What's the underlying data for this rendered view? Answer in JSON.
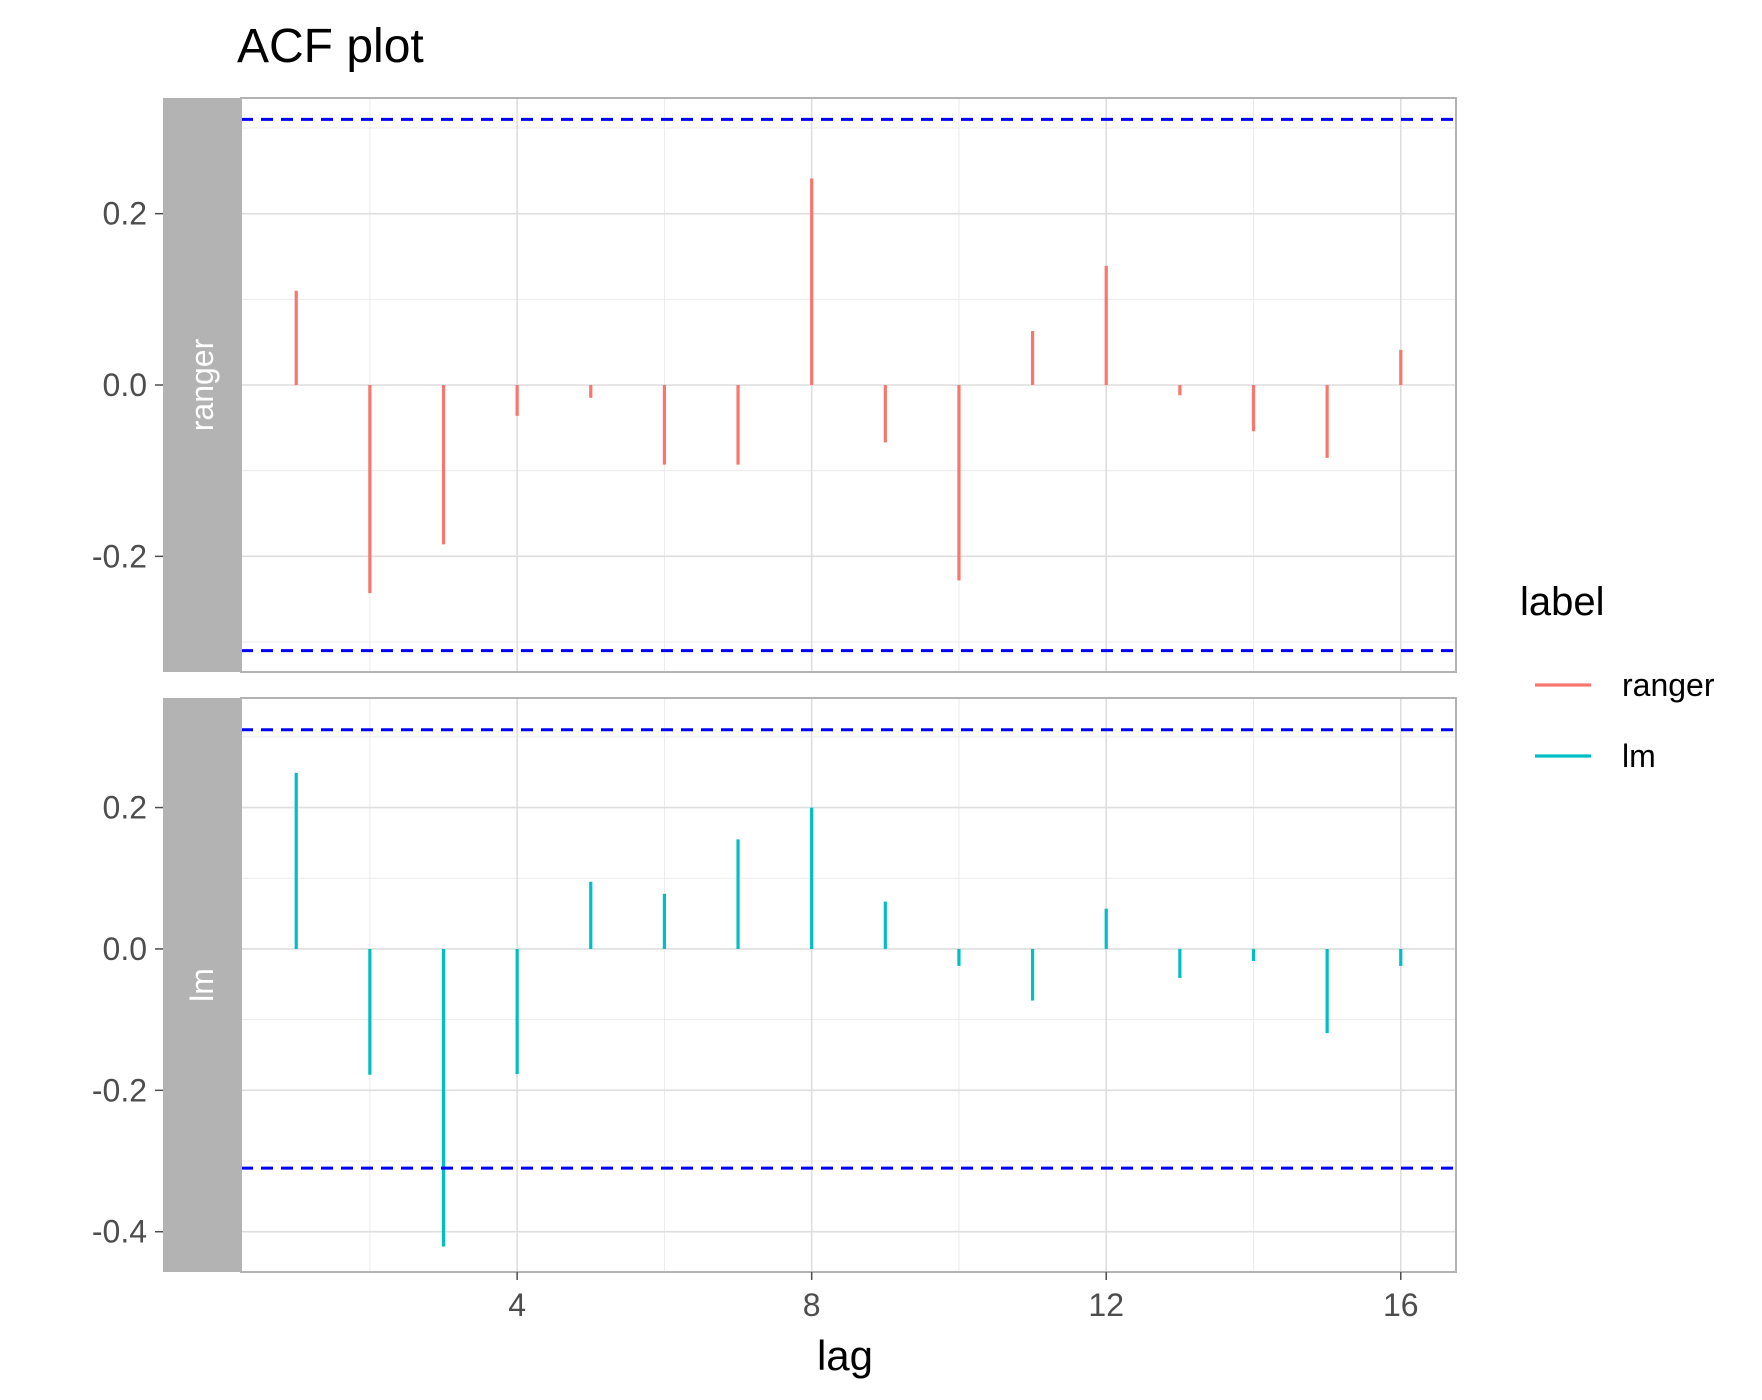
{
  "chart_data": {
    "type": "bar",
    "title": "ACF plot",
    "xlabel": "lag",
    "ylabel": "",
    "x_ticks": [
      4,
      8,
      12,
      16
    ],
    "x_tick_labels": [
      "4",
      "8",
      "12",
      "16"
    ],
    "xlim": [
      0.25,
      16.75
    ],
    "lags": [
      1,
      2,
      3,
      4,
      5,
      6,
      7,
      8,
      9,
      10,
      11,
      12,
      13,
      14,
      15,
      16
    ],
    "grid": true,
    "legend": {
      "title": "label",
      "position": "right",
      "entries": [
        {
          "name": "ranger",
          "color": "#F8766D"
        },
        {
          "name": "lm",
          "color": "#00BFC4"
        }
      ]
    },
    "confidence_color": "#0000FF",
    "panels": [
      {
        "strip_label": "ranger",
        "series": "ranger",
        "color": "#F8766D",
        "ylim": [
          -0.335,
          0.335
        ],
        "y_ticks": [
          -0.2,
          0.0,
          0.2
        ],
        "y_tick_labels": [
          "-0.2",
          "0.0",
          "0.2"
        ],
        "ci": 0.31,
        "values": [
          0.11,
          -0.243,
          -0.186,
          -0.036,
          -0.015,
          -0.093,
          -0.093,
          0.241,
          -0.067,
          -0.228,
          0.063,
          0.139,
          -0.012,
          -0.054,
          -0.085,
          0.041
        ]
      },
      {
        "strip_label": "lm",
        "series": "lm",
        "color": "#00BFC4",
        "ylim": [
          -0.457,
          0.355
        ],
        "y_ticks": [
          -0.4,
          -0.2,
          0.0,
          0.2
        ],
        "y_tick_labels": [
          "-0.4",
          "-0.2",
          "0.0",
          "0.2"
        ],
        "ci": 0.31,
        "values": [
          0.249,
          -0.178,
          -0.421,
          -0.177,
          0.095,
          0.078,
          0.155,
          0.2,
          0.067,
          -0.024,
          -0.073,
          0.057,
          -0.041,
          -0.017,
          -0.119,
          -0.024
        ]
      }
    ]
  }
}
